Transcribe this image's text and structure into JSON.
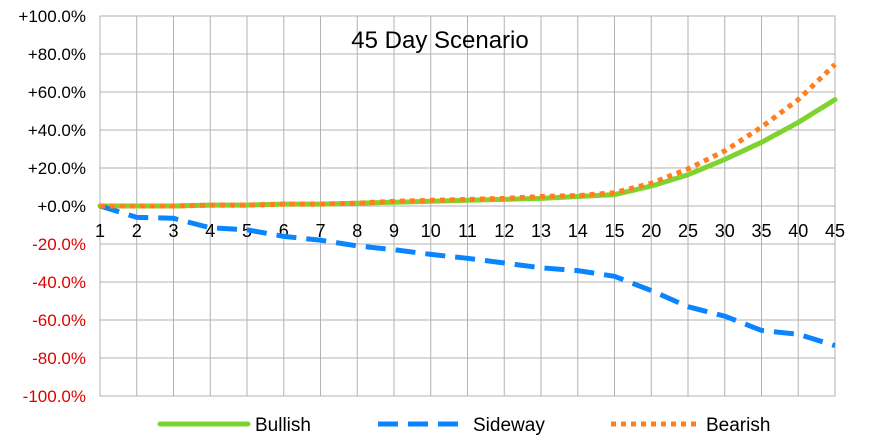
{
  "chart_data": {
    "type": "line",
    "title": "45 Day Scenario",
    "xlabel": "",
    "ylabel": "",
    "categories": [
      "1",
      "2",
      "3",
      "4",
      "5",
      "6",
      "7",
      "8",
      "9",
      "10",
      "11",
      "12",
      "13",
      "14",
      "15",
      "20",
      "25",
      "30",
      "35",
      "40",
      "45"
    ],
    "ylim": [
      -100,
      100
    ],
    "y_ticks": [
      "+100.0%",
      "+80.0%",
      "+60.0%",
      "+40.0%",
      "+20.0%",
      "+0.0%",
      "-20.0%",
      "-40.0%",
      "-60.0%",
      "-80.0%",
      "-100.0%"
    ],
    "y_tick_values": [
      100,
      80,
      60,
      40,
      20,
      0,
      -20,
      -40,
      -60,
      -80,
      -100
    ],
    "grid": true,
    "legend": "bottom",
    "negative_tick_color": "#e00000",
    "series": [
      {
        "name": "Bullish",
        "color": "#7fd32e",
        "style": "solid",
        "values": [
          0,
          0,
          0,
          0.5,
          0.5,
          1,
          1,
          1.5,
          2,
          2.5,
          3,
          3.5,
          4,
          5,
          6,
          10.5,
          16.5,
          24.5,
          33.5,
          44,
          56
        ]
      },
      {
        "name": "Sideway",
        "color": "#0a84ff",
        "style": "dashed",
        "values": [
          0,
          -6,
          -6.5,
          -11.5,
          -12.5,
          -16,
          -18,
          -21,
          -23,
          -25.5,
          -27.5,
          -30,
          -32.5,
          -34,
          -37,
          -44.5,
          -53,
          -58,
          -65.5,
          -67.5,
          -73.5
        ]
      },
      {
        "name": "Bearish",
        "color": "#ff7f1e",
        "style": "dotted",
        "values": [
          0,
          0,
          0,
          0.5,
          0.5,
          1,
          1,
          1.5,
          2.5,
          3,
          3.5,
          4,
          5,
          5.5,
          7,
          12,
          19.5,
          29,
          41.5,
          56,
          74.5
        ]
      }
    ]
  }
}
